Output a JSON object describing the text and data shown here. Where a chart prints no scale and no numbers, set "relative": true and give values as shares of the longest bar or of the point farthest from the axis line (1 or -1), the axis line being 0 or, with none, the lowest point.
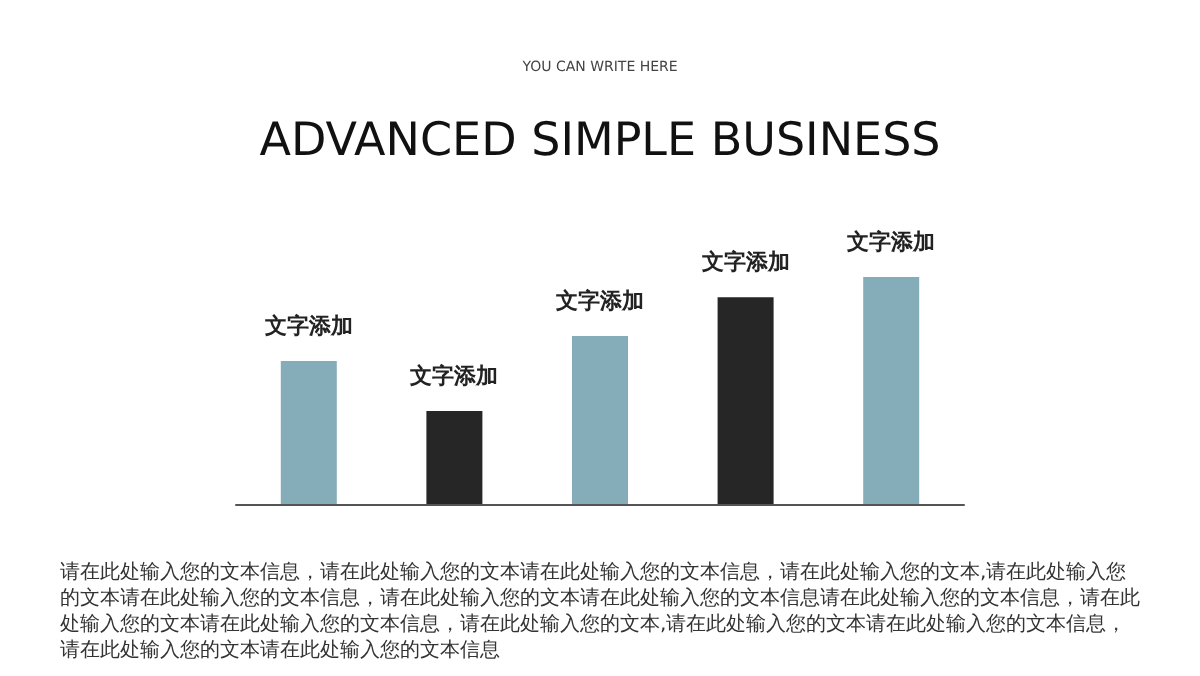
{
  "chart_data": {
    "type": "bar",
    "title": "ADVANCED SIMPLE BUSINESS",
    "subtitle": "YOU CAN WRITE HERE",
    "relative": true,
    "categories": [
      "文字添加",
      "文字添加",
      "文字添加",
      "文字添加",
      "文字添加"
    ],
    "values": [
      0.63,
      0.41,
      0.74,
      0.91,
      1
    ],
    "colors": [
      "#85adb9",
      "#262626",
      "#85adb9",
      "#262626",
      "#85adb9"
    ],
    "annotations": [
      "请在此处输入您的文本信息，请在此处输入您的文本请在此处输入您的文本信息，请在此处输入您的文本,请在此处输入您的文本请在此处输入您的文本信息，请在此处输入您的文本请在此处输入您的文本信息请在此处输入您的文本信息，请在此处输入您的文本请在此处输入您的文本信息，请在此处输入您的文本,请在此处输入您的文本请在此处输入您的文本信息，请在此处输入您的文本请在此处输入您的文本信息"
    ],
    "grid": false
  }
}
